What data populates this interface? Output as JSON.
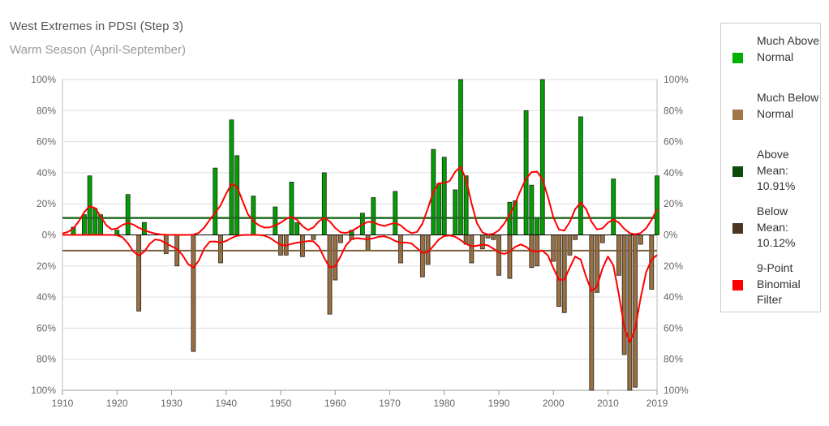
{
  "chart_data": {
    "type": "bar",
    "title": "West Extremes in PDSI (Step 3)",
    "subtitle": "Warm Season (April-September)",
    "xlim": [
      1910,
      2019
    ],
    "ylim": [
      -100,
      100
    ],
    "x_ticks": [
      "1910",
      "1920",
      "1930",
      "1940",
      "1950",
      "1960",
      "1970",
      "1980",
      "1990",
      "2000",
      "2010",
      "2019"
    ],
    "y_ticks": [
      "100%",
      "80%",
      "60%",
      "40%",
      "20%",
      "0%",
      "20%",
      "40%",
      "60%",
      "80%",
      "100%"
    ],
    "y_tick_values": [
      100,
      80,
      60,
      40,
      20,
      0,
      -20,
      -40,
      -60,
      -80,
      -100
    ],
    "grid": true,
    "legend_position": "right",
    "series": [
      {
        "name": "Much Above Normal",
        "color": "#00a000",
        "values": [
          [
            1912,
            5
          ],
          [
            1914,
            13
          ],
          [
            1915,
            38
          ],
          [
            1916,
            17
          ],
          [
            1917,
            13
          ],
          [
            1920,
            3
          ],
          [
            1922,
            26
          ],
          [
            1925,
            8
          ],
          [
            1938,
            43
          ],
          [
            1941,
            74
          ],
          [
            1942,
            51
          ],
          [
            1945,
            25
          ],
          [
            1949,
            18
          ],
          [
            1952,
            34
          ],
          [
            1953,
            8
          ],
          [
            1958,
            40
          ],
          [
            1963,
            3
          ],
          [
            1965,
            14
          ],
          [
            1967,
            24
          ],
          [
            1971,
            28
          ],
          [
            1978,
            55
          ],
          [
            1979,
            33
          ],
          [
            1980,
            50
          ],
          [
            1982,
            29
          ],
          [
            1983,
            100
          ],
          [
            1984,
            38
          ],
          [
            1992,
            21
          ],
          [
            1993,
            22
          ],
          [
            1995,
            80
          ],
          [
            1996,
            32
          ],
          [
            1997,
            11
          ],
          [
            1998,
            100
          ],
          [
            2005,
            76
          ],
          [
            2011,
            36
          ],
          [
            2019,
            38
          ]
        ]
      },
      {
        "name": "Much Below Normal",
        "color": "#9b7040",
        "values": [
          [
            1924,
            49
          ],
          [
            1929,
            12
          ],
          [
            1931,
            20
          ],
          [
            1934,
            75
          ],
          [
            1939,
            18
          ],
          [
            1950,
            13
          ],
          [
            1951,
            13
          ],
          [
            1954,
            14
          ],
          [
            1956,
            3
          ],
          [
            1959,
            51
          ],
          [
            1960,
            29
          ],
          [
            1961,
            5
          ],
          [
            1963,
            3
          ],
          [
            1966,
            10
          ],
          [
            1972,
            18
          ],
          [
            1976,
            27
          ],
          [
            1977,
            19
          ],
          [
            1984,
            6
          ],
          [
            1985,
            18
          ],
          [
            1987,
            9
          ],
          [
            1988,
            2
          ],
          [
            1989,
            3
          ],
          [
            1990,
            26
          ],
          [
            1992,
            28
          ],
          [
            1996,
            21
          ],
          [
            1997,
            20
          ],
          [
            2000,
            17
          ],
          [
            2001,
            46
          ],
          [
            2002,
            50
          ],
          [
            2003,
            13
          ],
          [
            2004,
            3
          ],
          [
            2007,
            100
          ],
          [
            2008,
            37
          ],
          [
            2009,
            5
          ],
          [
            2012,
            26
          ],
          [
            2013,
            77
          ],
          [
            2014,
            100
          ],
          [
            2015,
            98
          ],
          [
            2016,
            6
          ],
          [
            2018,
            35
          ]
        ]
      }
    ],
    "above_mean": 10.91,
    "below_mean": 10.12,
    "filter": {
      "name": "9-Point Binomial Filter",
      "color": "#ff0000"
    },
    "legend": [
      {
        "label": "Much Above Normal",
        "color": "#00b000"
      },
      {
        "label": "Much Below Normal",
        "color": "#a07848"
      },
      {
        "label": "Above Mean: 10.91%",
        "color": "#0a4a0a"
      },
      {
        "label": "Below Mean: 10.12%",
        "color": "#4a3520"
      },
      {
        "label": "9-Point Binomial Filter",
        "color": "#ff0000"
      }
    ]
  }
}
